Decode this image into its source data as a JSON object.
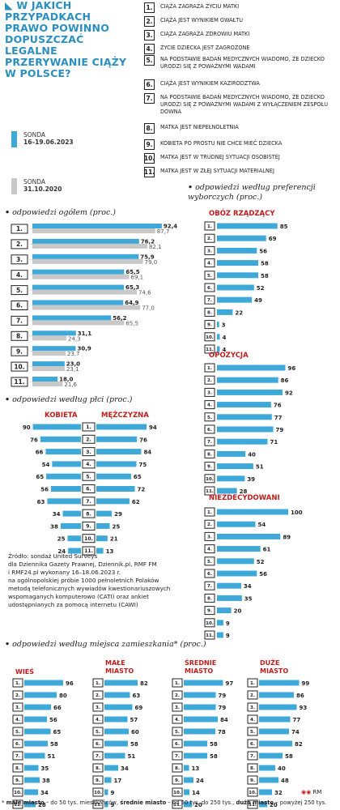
{
  "title": "W JAKICH PRZYPADKACH PRAWO POWINNO DOPUSZCZAĆ LEGALNE PRZERYWANIE CIĄŻY W POLSCE?",
  "colors": {
    "current": "#3ea8d8",
    "previous": "#c8c8c8",
    "accent": "#c01c1c"
  },
  "legend": [
    {
      "label1": "SONDA",
      "label2": "16–19.06.2023",
      "color": "#3ea8d8"
    },
    {
      "label1": "SONDA",
      "label2": "31.10.2020",
      "color": "#c8c8c8"
    }
  ],
  "questions": [
    {
      "num": "1.",
      "text": "CIĄŻA ZAGRAŻA ŻYCIU MATKI"
    },
    {
      "num": "2.",
      "text": "CIĄŻA JEST WYNIKIEM GWAŁTU"
    },
    {
      "num": "3.",
      "text": "CIĄŻA ZAGRAŻA ZDROWIU MATKI"
    },
    {
      "num": "4.",
      "text": "ŻYCIE DZIECKA JEST ZAGROŻONE"
    },
    {
      "num": "5.",
      "text": "NA PODSTAWIE BADAŃ MEDYCZNYCH WIADOMO, ŻE DZIECKO URODZI SIĘ Z POWAŻNYMI WADAMI"
    },
    {
      "num": "6.",
      "text": "CIĄŻA JEST WYNIKIEM KAZIRODZTWA"
    },
    {
      "num": "7.",
      "text": "NA PODSTAWIE BADAŃ MEDYCZNYCH WIADOMO, ŻE DZIECKO URODZI SIĘ Z POWAŻNYMI WADAMI Z WYŁĄCZENIEM ZESPOŁU DOWNA"
    },
    {
      "num": "8.",
      "text": "MATKA JEST NIEPEŁNOLETNIA"
    },
    {
      "num": "9.",
      "text": "KOBIETA PO PROSTU NIE CHCE MIEĆ DZIECKA"
    },
    {
      "num": "10.",
      "text": "MATKA JEST W TRUDNEJ SYTUACJI OSOBISTEJ"
    },
    {
      "num": "11.",
      "text": "MATKA JEST W ZŁEJ SYTUACJI MATERIALNEJ"
    }
  ],
  "numbers": [
    "1.",
    "2.",
    "3.",
    "4.",
    "5.",
    "6.",
    "7.",
    "8.",
    "9.",
    "10.",
    "11."
  ],
  "sections": {
    "overall": "odpowiedzi ogółem (proc.)",
    "gender": "odpowiedzi według płci (proc.)",
    "party": "odpowiedzi według preferencji wyborczych (proc.)",
    "place": "odpowiedzi według miejsca zamieszkania* (proc.)"
  },
  "source": [
    "Źródło: sondaż United Surveys",
    "dla Dziennika Gazety Prawnej, Dziennik.pl, RMF FM",
    "i RMF24.pl wykonany 16–18.06.2023 r.",
    "na ogólnopolskiej próbie 1000 pełnoletnich Polaków",
    "metodą telefonicznych wywiadów kwestionariuszowych",
    "wspomaganych komputerowo (CATI) oraz ankiet",
    "udostępnianych za pomocą internetu (CAWI)"
  ],
  "footnote": "* małe miasto – do 50 tys. mieszkańców, średnie miasto – od 50 tys. do 250 tys., duże miasto – powyżej 250 tys.",
  "credit": "RM",
  "chart_data": [
    {
      "type": "bar",
      "name": "overall",
      "categories": [
        "1.",
        "2.",
        "3.",
        "4.",
        "5.",
        "6.",
        "7.",
        "8.",
        "9.",
        "10.",
        "11."
      ],
      "series": [
        {
          "name": "16–19.06.2023",
          "values": [
            92.4,
            76.2,
            75.9,
            65.5,
            65.3,
            64.9,
            56.2,
            31.1,
            30.9,
            23.0,
            18.0
          ]
        },
        {
          "name": "31.10.2020",
          "values": [
            87.7,
            82.1,
            79.0,
            69.1,
            74.6,
            77.0,
            65.5,
            24.3,
            23.7,
            23.1,
            21.6
          ]
        }
      ],
      "labels": [
        [
          "92,4",
          "87,7"
        ],
        [
          "76,2",
          "82,1"
        ],
        [
          "75,9",
          "79,0"
        ],
        [
          "65,5",
          "69,1"
        ],
        [
          "65,3",
          "74,6"
        ],
        [
          "64,9",
          "77,0"
        ],
        [
          "56,2",
          "65,5"
        ],
        [
          "31,1",
          "24,3"
        ],
        [
          "30,9",
          "23,7"
        ],
        [
          "23,0",
          "23,1"
        ],
        [
          "18,0",
          "21,6"
        ]
      ]
    },
    {
      "type": "bar",
      "name": "gender",
      "categories": [
        "1.",
        "2.",
        "3.",
        "4.",
        "5.",
        "6.",
        "7.",
        "8.",
        "9.",
        "10.",
        "11."
      ],
      "series": [
        {
          "name": "KOBIETA",
          "values": [
            90,
            76,
            66,
            54,
            65,
            56,
            63,
            34,
            38,
            25,
            24
          ]
        },
        {
          "name": "MĘŻCZYZNA",
          "values": [
            94,
            76,
            84,
            75,
            65,
            72,
            62,
            29,
            25,
            21,
            13
          ]
        }
      ]
    },
    {
      "type": "bar",
      "name": "party",
      "categories": [
        "1.",
        "2.",
        "3.",
        "4.",
        "5.",
        "6.",
        "7.",
        "8.",
        "9.",
        "10.",
        "11."
      ],
      "series": [
        {
          "name": "OBÓZ RZĄDZĄCY",
          "values": [
            85,
            69,
            56,
            58,
            58,
            52,
            49,
            22,
            3,
            4,
            4
          ]
        },
        {
          "name": "OPOZYCJA",
          "values": [
            96,
            86,
            92,
            76,
            77,
            79,
            71,
            40,
            51,
            39,
            28
          ]
        },
        {
          "name": "NIEZDECYDOWANI",
          "values": [
            100,
            54,
            89,
            61,
            52,
            56,
            34,
            35,
            20,
            9,
            9
          ]
        }
      ]
    },
    {
      "type": "bar",
      "name": "place",
      "categories": [
        "1.",
        "2.",
        "3.",
        "4.",
        "5.",
        "6.",
        "7.",
        "8.",
        "9.",
        "10.",
        "11."
      ],
      "series": [
        {
          "name": "WIEŚ",
          "values": [
            96,
            80,
            66,
            56,
            65,
            58,
            51,
            35,
            38,
            34,
            28
          ]
        },
        {
          "name": "MAŁE MIASTO",
          "values": [
            82,
            63,
            69,
            57,
            60,
            58,
            51,
            34,
            17,
            9,
            9
          ]
        },
        {
          "name": "ŚREDNIE MIASTO",
          "values": [
            97,
            79,
            79,
            84,
            78,
            58,
            58,
            13,
            24,
            14,
            20
          ]
        },
        {
          "name": "DUŻE MIASTO",
          "values": [
            99,
            86,
            93,
            77,
            74,
            82,
            58,
            40,
            48,
            32,
            20
          ]
        }
      ]
    }
  ]
}
